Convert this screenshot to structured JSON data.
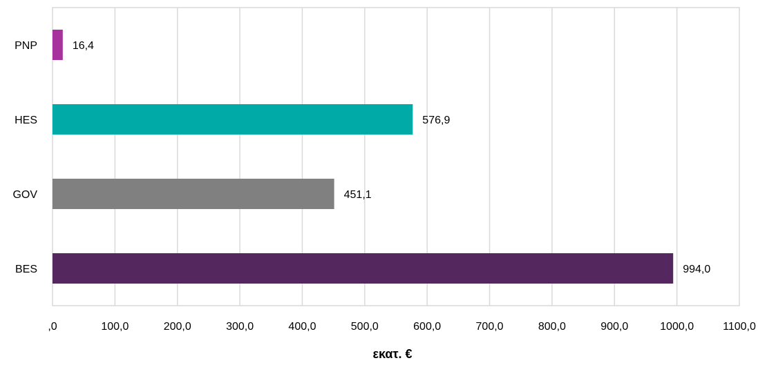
{
  "chart_data": {
    "type": "bar",
    "orientation": "horizontal",
    "title": "",
    "xlabel": "εκατ. €",
    "ylabel": "",
    "xlim": [
      0,
      1100
    ],
    "x_ticks": [
      0,
      100,
      200,
      300,
      400,
      500,
      600,
      700,
      800,
      900,
      1000,
      1100
    ],
    "x_tick_labels": [
      ",0",
      "100,0",
      "200,0",
      "300,0",
      "400,0",
      "500,0",
      "600,0",
      "700,0",
      "800,0",
      "900,0",
      "1000,0",
      "1100,0"
    ],
    "grid": "vertical",
    "legend": "none",
    "categories": [
      "PNP",
      "HES",
      "GOV",
      "BES"
    ],
    "values": [
      16.4,
      576.9,
      451.1,
      994.0
    ],
    "value_labels": [
      "16,4",
      "576,9",
      "451,1",
      "994,0"
    ],
    "colors": [
      "#a8329d",
      "#00aaa6",
      "#808080",
      "#54275f"
    ],
    "grid_color": "#d9d9d9",
    "axis_color": "#d9d9d9"
  }
}
